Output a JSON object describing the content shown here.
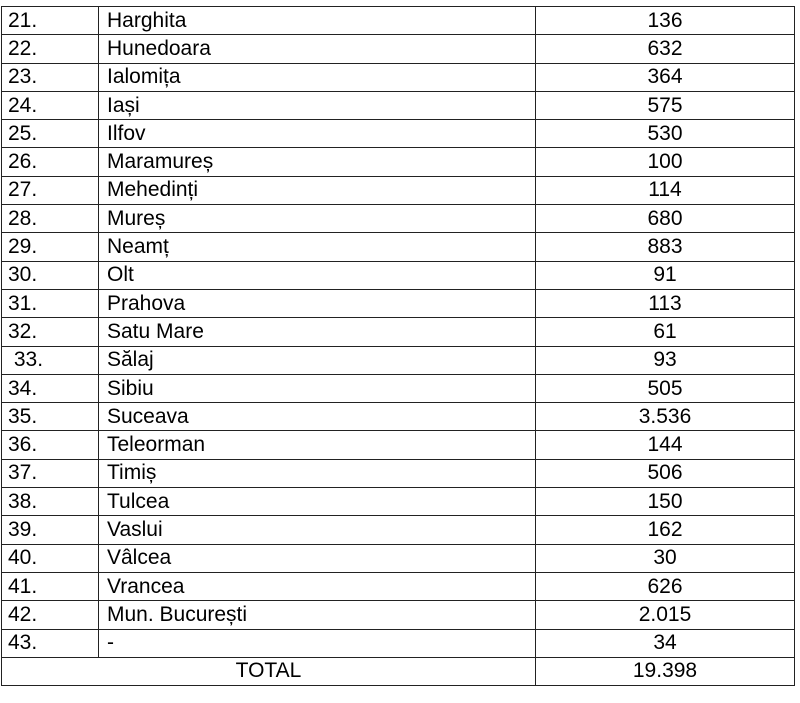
{
  "rows": [
    {
      "no": "21.",
      "name": "Harghita",
      "value": "136"
    },
    {
      "no": "22.",
      "name": "Hunedoara",
      "value": "632"
    },
    {
      "no": "23.",
      "name": "Ialomița",
      "value": "364"
    },
    {
      "no": "24.",
      "name": "Iași",
      "value": "575"
    },
    {
      "no": "25.",
      "name": "Ilfov",
      "value": "530"
    },
    {
      "no": "26.",
      "name": "Maramureș",
      "value": "100"
    },
    {
      "no": "27.",
      "name": "Mehedinți",
      "value": "114"
    },
    {
      "no": "28.",
      "name": "Mureș",
      "value": "680"
    },
    {
      "no": "29.",
      "name": "Neamț",
      "value": "883"
    },
    {
      "no": "30.",
      "name": "Olt",
      "value": "91"
    },
    {
      "no": "31.",
      "name": "Prahova",
      "value": "113"
    },
    {
      "no": "32.",
      "name": "Satu Mare",
      "value": "61"
    },
    {
      "no": " 33.",
      "name": "Sălaj",
      "value": "93"
    },
    {
      "no": "34.",
      "name": "Sibiu",
      "value": "505"
    },
    {
      "no": "35.",
      "name": "Suceava",
      "value": "3.536"
    },
    {
      "no": "36.",
      "name": "Teleorman",
      "value": "144"
    },
    {
      "no": "37.",
      "name": "Timiș",
      "value": "506"
    },
    {
      "no": "38.",
      "name": "Tulcea",
      "value": "150"
    },
    {
      "no": "39.",
      "name": "Vaslui",
      "value": "162"
    },
    {
      "no": "40.",
      "name": "Vâlcea",
      "value": "30"
    },
    {
      "no": "41.",
      "name": "Vrancea",
      "value": "626"
    },
    {
      "no": "42.",
      "name": "Mun. București",
      "value": "2.015"
    },
    {
      "no": "43.",
      "name": "-",
      "value": "34"
    }
  ],
  "total": {
    "label": "TOTAL",
    "value": "19.398"
  }
}
